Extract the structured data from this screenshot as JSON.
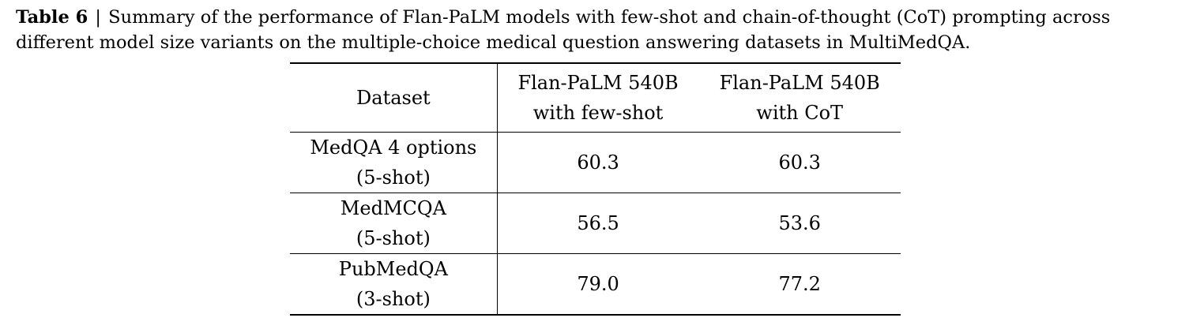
{
  "caption": {
    "label": "Table 6",
    "separator": "|",
    "text": "Summary of the performance of Flan-PaLM models with few-shot and chain-of-thought (CoT) prompting across different model size variants on the multiple-choice medical question answering datasets in MultiMedQA."
  },
  "table": {
    "headers": {
      "dataset": "Dataset",
      "col_a": [
        "Flan-PaLM 540B",
        "with few-shot"
      ],
      "col_b": [
        "Flan-PaLM 540B",
        "with CoT"
      ]
    },
    "rows": [
      {
        "dataset": [
          "MedQA 4 options",
          "(5-shot)"
        ],
        "few_shot": "60.3",
        "cot": "60.3"
      },
      {
        "dataset": [
          "MedMCQA",
          "(5-shot)"
        ],
        "few_shot": "56.5",
        "cot": "53.6"
      },
      {
        "dataset": [
          "PubMedQA",
          "(3-shot)"
        ],
        "few_shot": "79.0",
        "cot": "77.2"
      }
    ]
  }
}
